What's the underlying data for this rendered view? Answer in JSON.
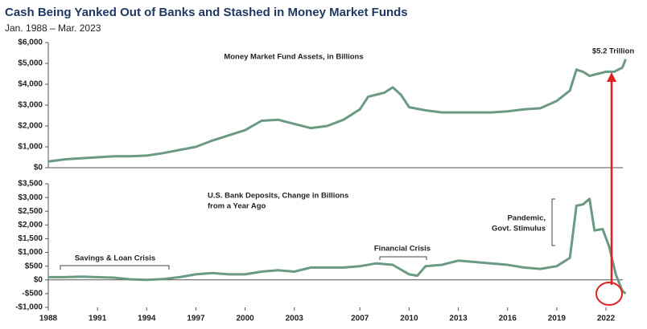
{
  "title": "Cash Being Yanked Out of Banks and Stashed in Money Market Funds",
  "subtitle": "Jan. 1988 – Mar. 2023",
  "chart_data": [
    {
      "type": "line",
      "annotations": [
        "Money Market Fund Assets, in Billions",
        "$5.2 Trillion"
      ],
      "color": "#6b9a82",
      "xlim": [
        1988,
        2023.2
      ],
      "ylim": [
        0,
        6000
      ],
      "yticks": [
        {
          "value": 0,
          "label": "$0"
        },
        {
          "value": 1000,
          "label": "$1,000"
        },
        {
          "value": 2000,
          "label": "$2,000"
        },
        {
          "value": 3000,
          "label": "$3,000"
        },
        {
          "value": 4000,
          "label": "$4,000"
        },
        {
          "value": 5000,
          "label": "$5,000"
        },
        {
          "value": 6000,
          "label": "$6,000"
        }
      ],
      "x": [
        1988,
        1989,
        1990,
        1991,
        1992,
        1993,
        1994,
        1995,
        1996,
        1997,
        1998,
        1999,
        2000,
        2001,
        2002,
        2003,
        2004,
        2005,
        2006,
        2007,
        2007.5,
        2008,
        2008.5,
        2009,
        2009.5,
        2010,
        2011,
        2012,
        2013,
        2014,
        2015,
        2016,
        2017,
        2018,
        2019,
        2019.8,
        2020.2,
        2020.6,
        2021,
        2021.5,
        2022,
        2022.5,
        2023,
        2023.2
      ],
      "values": [
        300,
        400,
        450,
        500,
        550,
        550,
        580,
        700,
        850,
        1000,
        1300,
        1550,
        1800,
        2250,
        2300,
        2100,
        1900,
        2000,
        2300,
        2800,
        3400,
        3500,
        3600,
        3850,
        3500,
        2900,
        2750,
        2650,
        2650,
        2650,
        2650,
        2700,
        2800,
        2850,
        3200,
        3700,
        4700,
        4600,
        4400,
        4500,
        4600,
        4600,
        4800,
        5200
      ]
    },
    {
      "type": "line",
      "annotations": [
        "U.S. Bank Deposits, Change in Billions",
        "from a Year Ago",
        "Savings & Loan Crisis",
        "Financial Crisis",
        "Pandemic,",
        "Govt. Stimulus"
      ],
      "color": "#6b9a82",
      "xlim": [
        1988,
        2023.2
      ],
      "xticks": [
        1988,
        1991,
        1994,
        1997,
        2000,
        2003,
        2007,
        2010,
        2013,
        2016,
        2019,
        2022
      ],
      "ylim": [
        -1000,
        3500
      ],
      "yticks": [
        {
          "value": -1000,
          "label": "-$1,000"
        },
        {
          "value": -500,
          "label": "-$500"
        },
        {
          "value": 0,
          "label": "$0"
        },
        {
          "value": 500,
          "label": "$500"
        },
        {
          "value": 1000,
          "label": "$1,000"
        },
        {
          "value": 1500,
          "label": "$1,500"
        },
        {
          "value": 2000,
          "label": "$2,000"
        },
        {
          "value": 2500,
          "label": "$2,500"
        },
        {
          "value": 3000,
          "label": "$3,000"
        },
        {
          "value": 3500,
          "label": "$3,500"
        }
      ],
      "x": [
        1988,
        1989,
        1990,
        1991,
        1992,
        1993,
        1994,
        1995,
        1996,
        1997,
        1998,
        1999,
        2000,
        2001,
        2002,
        2003,
        2004,
        2005,
        2006,
        2007,
        2008,
        2009,
        2010,
        2010.5,
        2011,
        2012,
        2013,
        2014,
        2015,
        2016,
        2017,
        2018,
        2019,
        2019.8,
        2020.2,
        2020.6,
        2021,
        2021.3,
        2021.8,
        2022.2,
        2022.6,
        2023,
        2023.2
      ],
      "values": [
        100,
        100,
        120,
        100,
        80,
        20,
        0,
        30,
        100,
        200,
        250,
        200,
        200,
        300,
        350,
        300,
        450,
        450,
        450,
        500,
        600,
        550,
        200,
        150,
        500,
        550,
        700,
        650,
        600,
        550,
        450,
        400,
        500,
        800,
        2700,
        2750,
        2950,
        1800,
        1850,
        1200,
        200,
        -400,
        -500
      ]
    }
  ]
}
